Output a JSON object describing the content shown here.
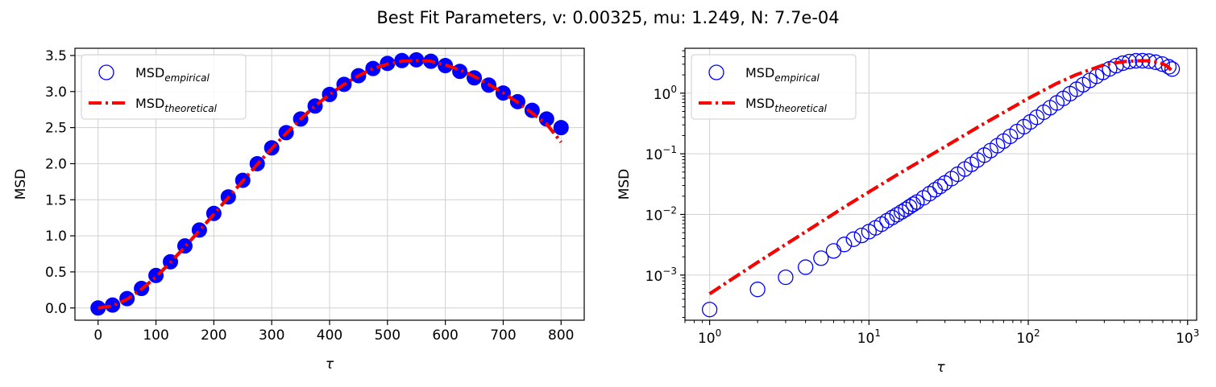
{
  "figure": {
    "suptitle": "Best Fit Parameters, v: 0.00325, mu: 1.249, N: 7.7e-04"
  },
  "chart_data": [
    {
      "type": "scatter",
      "scale": "linear",
      "xlabel": "τ",
      "ylabel": "MSD",
      "xlim": [
        -40,
        840
      ],
      "ylim": [
        -0.17,
        3.6
      ],
      "xticks": [
        0,
        100,
        200,
        300,
        400,
        500,
        600,
        700,
        800
      ],
      "xtick_labels": [
        "0",
        "100",
        "200",
        "300",
        "400",
        "500",
        "600",
        "700",
        "800"
      ],
      "yticks": [
        0.0,
        0.5,
        1.0,
        1.5,
        2.0,
        2.5,
        3.0,
        3.5
      ],
      "ytick_labels": [
        "0.0",
        "0.5",
        "1.0",
        "1.5",
        "2.0",
        "2.5",
        "3.0",
        "3.5"
      ],
      "grid": true,
      "legend_position": "upper-left",
      "series": [
        {
          "name": "MSD",
          "name_sub": "empirical",
          "kind": "markers",
          "marker": "open-circle",
          "color": "#0000ff",
          "x": [
            0,
            25,
            50,
            75,
            100,
            125,
            150,
            175,
            200,
            225,
            250,
            275,
            300,
            325,
            350,
            375,
            400,
            425,
            450,
            475,
            500,
            525,
            550,
            575,
            600,
            625,
            650,
            675,
            700,
            725,
            750,
            775,
            800
          ],
          "y": [
            0.0,
            0.04,
            0.13,
            0.27,
            0.45,
            0.64,
            0.86,
            1.08,
            1.31,
            1.54,
            1.77,
            2.0,
            2.22,
            2.43,
            2.62,
            2.8,
            2.96,
            3.1,
            3.22,
            3.32,
            3.39,
            3.43,
            3.44,
            3.42,
            3.36,
            3.28,
            3.19,
            3.09,
            2.98,
            2.86,
            2.74,
            2.62,
            2.5
          ]
        },
        {
          "name": "MSD",
          "name_sub": "theoretical",
          "kind": "line",
          "line_style": "dash-dot",
          "color": "#ff0000",
          "x": [
            0,
            25,
            50,
            75,
            100,
            125,
            150,
            175,
            200,
            225,
            250,
            275,
            300,
            325,
            350,
            375,
            400,
            425,
            450,
            475,
            500,
            525,
            550,
            575,
            600,
            625,
            650,
            675,
            700,
            725,
            750,
            775,
            800
          ],
          "y": [
            0.0,
            0.03,
            0.12,
            0.26,
            0.43,
            0.63,
            0.85,
            1.07,
            1.3,
            1.53,
            1.76,
            1.99,
            2.21,
            2.42,
            2.62,
            2.8,
            2.96,
            3.1,
            3.22,
            3.32,
            3.38,
            3.42,
            3.43,
            3.42,
            3.37,
            3.3,
            3.21,
            3.1,
            2.98,
            2.85,
            2.7,
            2.55,
            2.3
          ]
        }
      ]
    },
    {
      "type": "scatter",
      "scale": "log-log",
      "xlabel": "τ",
      "ylabel": "MSD",
      "xlim": [
        0.7,
        1140
      ],
      "ylim": [
        0.00018,
        5.5
      ],
      "xticks": [
        1,
        10,
        100,
        1000
      ],
      "xtick_labels": [
        [
          "10",
          "0"
        ],
        [
          "10",
          "1"
        ],
        [
          "10",
          "2"
        ],
        [
          "10",
          "3"
        ]
      ],
      "yticks": [
        0.001,
        0.01,
        0.1,
        1
      ],
      "ytick_labels": [
        [
          "10",
          "−3"
        ],
        [
          "10",
          "−2"
        ],
        [
          "10",
          "−1"
        ],
        [
          "10",
          "0"
        ]
      ],
      "grid": true,
      "legend_position": "upper-left",
      "series": [
        {
          "name": "MSD",
          "name_sub": "empirical",
          "kind": "markers",
          "marker": "open-circle",
          "color": "#0000ff",
          "x": [
            1,
            2,
            3,
            4,
            5,
            6,
            7,
            8,
            9,
            10,
            11,
            12,
            13,
            14,
            15,
            16,
            17,
            18,
            19,
            20,
            22,
            24,
            26,
            28,
            30,
            33,
            36,
            40,
            44,
            48,
            53,
            58,
            64,
            70,
            77,
            85,
            94,
            103,
            113,
            125,
            137,
            151,
            166,
            183,
            201,
            221,
            243,
            268,
            294,
            324,
            356,
            392,
            431,
            474,
            521,
            573,
            630,
            693,
            762,
            800
          ],
          "y": [
            0.00027,
            0.00058,
            0.00092,
            0.00135,
            0.0019,
            0.0025,
            0.0032,
            0.0039,
            0.0045,
            0.0052,
            0.006,
            0.0069,
            0.0079,
            0.0089,
            0.0099,
            0.011,
            0.0121,
            0.0134,
            0.0147,
            0.016,
            0.0188,
            0.022,
            0.0255,
            0.029,
            0.033,
            0.039,
            0.046,
            0.056,
            0.067,
            0.079,
            0.095,
            0.113,
            0.136,
            0.162,
            0.194,
            0.233,
            0.28,
            0.335,
            0.4,
            0.485,
            0.575,
            0.69,
            0.82,
            0.98,
            1.16,
            1.38,
            1.62,
            1.9,
            2.2,
            2.52,
            2.84,
            3.12,
            3.32,
            3.42,
            3.43,
            3.38,
            3.24,
            3.02,
            2.72,
            2.5
          ]
        },
        {
          "name": "MSD",
          "name_sub": "theoretical",
          "kind": "line",
          "line_style": "dash-dot",
          "color": "#ff0000",
          "x": [
            1,
            1.5,
            2,
            3,
            5,
            7,
            10,
            15,
            20,
            30,
            50,
            70,
            100,
            150,
            200,
            300,
            400,
            500,
            550,
            600,
            650,
            700,
            750,
            800
          ],
          "y": [
            0.00049,
            0.00099,
            0.00162,
            0.0032,
            0.0075,
            0.0132,
            0.0235,
            0.045,
            0.07,
            0.131,
            0.29,
            0.48,
            0.82,
            1.44,
            2.02,
            2.95,
            3.32,
            3.42,
            3.43,
            3.39,
            3.25,
            3.05,
            2.75,
            2.3
          ]
        }
      ]
    }
  ]
}
